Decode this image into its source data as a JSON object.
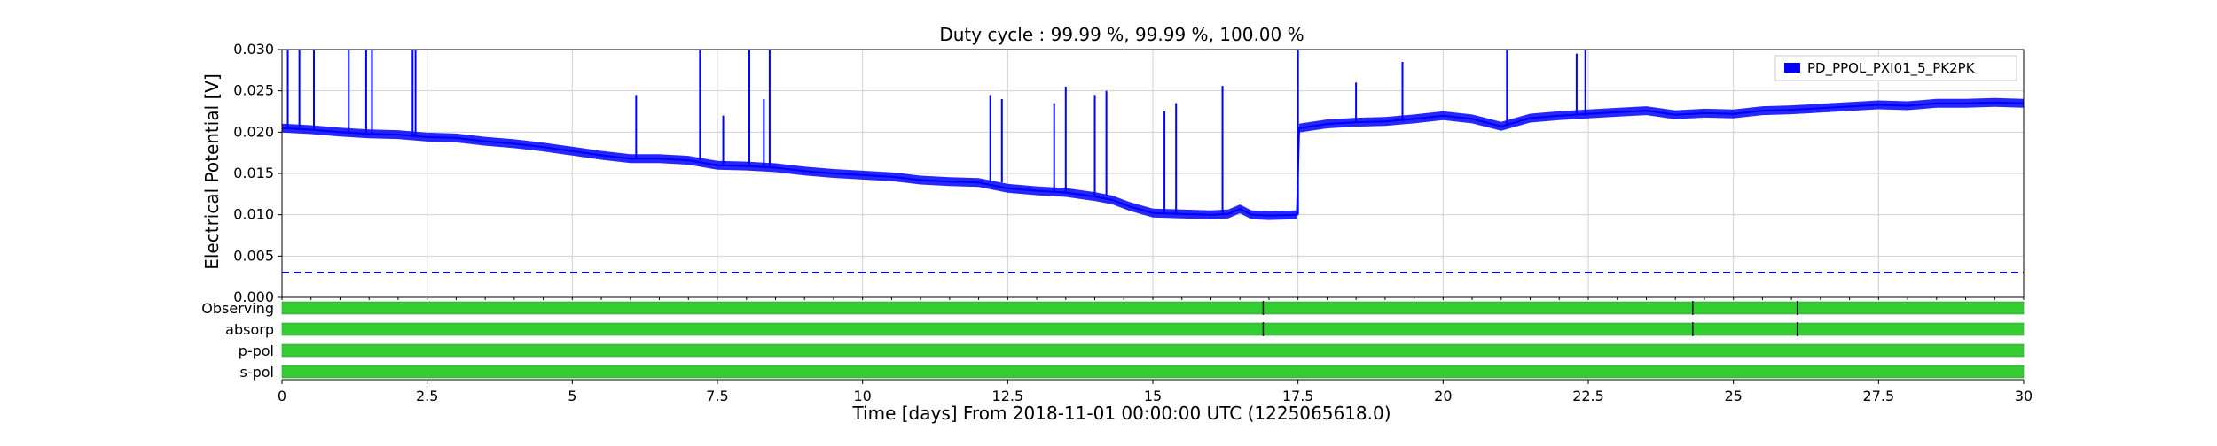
{
  "chart_data": {
    "type": "line",
    "title": "Duty cycle : 99.99 %, 99.99 %, 100.00 %",
    "xlabel": "Time [days] From 2018-11-01 00:00:00 UTC (1225065618.0)",
    "ylabel": "Electrical Potential [V]",
    "xlim": [
      0,
      30
    ],
    "ylim": [
      0,
      0.03
    ],
    "x_ticks": [
      0,
      2.5,
      5,
      7.5,
      10,
      12.5,
      15,
      17.5,
      20,
      22.5,
      25,
      27.5,
      30
    ],
    "x_tick_labels": [
      "0",
      "2.5",
      "5",
      "7.5",
      "10",
      "12.5",
      "15",
      "17.5",
      "20",
      "22.5",
      "25",
      "27.5",
      "30"
    ],
    "y_ticks": [
      0,
      0.005,
      0.01,
      0.015,
      0.02,
      0.025,
      0.03
    ],
    "y_tick_labels": [
      "0.000",
      "0.005",
      "0.010",
      "0.015",
      "0.020",
      "0.025",
      "0.030"
    ],
    "grid": true,
    "legend_position": "top-right",
    "series": [
      {
        "name": "PD_PPOL_PXI01_5_PK2PK",
        "color": "#0000ff",
        "x": [
          0,
          0.5,
          1,
          1.5,
          2,
          2.5,
          3,
          3.5,
          4,
          4.5,
          5,
          5.5,
          6,
          6.5,
          7,
          7.5,
          8,
          8.5,
          9,
          9.5,
          10,
          10.5,
          11,
          11.5,
          12,
          12.5,
          13,
          13.5,
          14,
          14.3,
          14.6,
          15,
          15.5,
          16,
          16.3,
          16.5,
          16.7,
          17,
          17.48,
          17.52,
          18,
          18.5,
          19,
          19.5,
          20,
          20.5,
          21,
          21.5,
          22,
          22.5,
          23,
          23.5,
          24,
          24.5,
          25,
          25.5,
          26,
          26.5,
          27,
          27.5,
          28,
          28.5,
          29,
          29.5,
          30
        ],
        "y": [
          0.0205,
          0.0203,
          0.02,
          0.0198,
          0.0197,
          0.0194,
          0.0193,
          0.0189,
          0.0186,
          0.0182,
          0.0177,
          0.0172,
          0.0168,
          0.0168,
          0.0166,
          0.016,
          0.0159,
          0.0157,
          0.0153,
          0.015,
          0.0148,
          0.0146,
          0.0142,
          0.014,
          0.0139,
          0.0132,
          0.0129,
          0.0127,
          0.0122,
          0.0118,
          0.011,
          0.0102,
          0.0101,
          0.01,
          0.0101,
          0.0107,
          0.01,
          0.0099,
          0.01,
          0.0205,
          0.021,
          0.0212,
          0.0213,
          0.0216,
          0.022,
          0.0216,
          0.0207,
          0.0217,
          0.022,
          0.0222,
          0.0224,
          0.0226,
          0.0221,
          0.0223,
          0.0222,
          0.0226,
          0.0227,
          0.0229,
          0.0231,
          0.0233,
          0.0232,
          0.0235,
          0.0235,
          0.0236,
          0.0235
        ]
      }
    ],
    "spikes": {
      "x": [
        0.1,
        0.3,
        0.55,
        1.15,
        1.45,
        1.55,
        2.25,
        2.3,
        6.1,
        7.2,
        7.6,
        8.05,
        8.3,
        8.4,
        12.2,
        12.4,
        13.3,
        13.5,
        14.0,
        14.2,
        15.2,
        15.4,
        16.2,
        17.5,
        18.5,
        19.3,
        21.1,
        22.3,
        22.45
      ],
      "y": [
        0.03,
        0.03,
        0.03,
        0.03,
        0.03,
        0.03,
        0.03,
        0.03,
        0.0245,
        0.03,
        0.022,
        0.03,
        0.024,
        0.03,
        0.0245,
        0.024,
        0.0235,
        0.0255,
        0.0245,
        0.025,
        0.0225,
        0.0235,
        0.0256,
        0.03,
        0.026,
        0.0285,
        0.03,
        0.0295,
        0.03
      ]
    },
    "threshold": {
      "y": 0.003,
      "color": "#0000ff",
      "style": "dashed"
    },
    "segment_bars": [
      {
        "label": "Observing",
        "color": "#33cc33",
        "breaks": [
          16.9,
          24.3,
          26.1
        ]
      },
      {
        "label": "absorp",
        "color": "#33cc33",
        "breaks": [
          16.9,
          24.3,
          26.1
        ]
      },
      {
        "label": "p-pol",
        "color": "#33cc33",
        "breaks": []
      },
      {
        "label": "s-pol",
        "color": "#33cc33",
        "breaks": []
      }
    ]
  }
}
